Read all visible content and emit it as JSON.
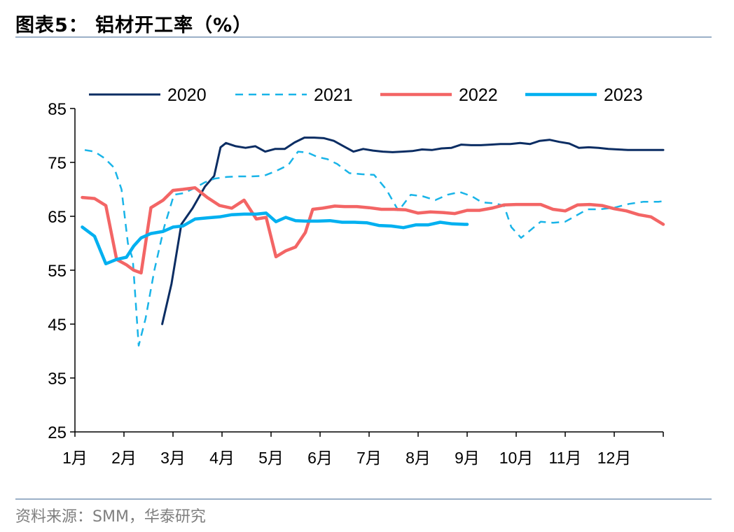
{
  "header": {
    "title": "图表5：  铝材开工率（%）"
  },
  "footer": {
    "source": "资料来源：SMM，华泰研究"
  },
  "chart_data": {
    "type": "line",
    "title": "",
    "xlabel": "",
    "ylabel": "",
    "ylim": [
      25,
      85
    ],
    "yticks": [
      25,
      35,
      45,
      55,
      65,
      75,
      85
    ],
    "xlim": [
      1,
      13
    ],
    "xticks": [
      {
        "v": 1,
        "label": "1月"
      },
      {
        "v": 2,
        "label": "2月"
      },
      {
        "v": 3,
        "label": "3月"
      },
      {
        "v": 4,
        "label": "4月"
      },
      {
        "v": 5,
        "label": "5月"
      },
      {
        "v": 6,
        "label": "6月"
      },
      {
        "v": 7,
        "label": "7月"
      },
      {
        "v": 8,
        "label": "8月"
      },
      {
        "v": 9,
        "label": "9月"
      },
      {
        "v": 10,
        "label": "10月"
      },
      {
        "v": 11,
        "label": "11月"
      },
      {
        "v": 12,
        "label": "12月"
      }
    ],
    "legend_position": "top",
    "grid": false,
    "series": [
      {
        "name": "2020",
        "color": "#0b2d63",
        "dash": "solid",
        "width": 3,
        "x": [
          2.78,
          2.97,
          3.17,
          3.4,
          3.65,
          3.84,
          3.97,
          4.08,
          4.28,
          4.48,
          4.68,
          4.88,
          5.08,
          5.28,
          5.48,
          5.68,
          5.88,
          6.08,
          6.28,
          6.48,
          6.68,
          6.88,
          7.08,
          7.28,
          7.48,
          7.68,
          7.88,
          8.08,
          8.28,
          8.48,
          8.68,
          8.88,
          9.08,
          9.28,
          9.48,
          9.68,
          9.88,
          10.08,
          10.28,
          10.48,
          10.68,
          10.88,
          11.08,
          11.28,
          11.48,
          11.68,
          11.88,
          12.08,
          12.28,
          12.48,
          12.68,
          12.88,
          13.0
        ],
        "values": [
          45,
          52.5,
          63.5,
          66.5,
          70.5,
          72.5,
          77.8,
          78.6,
          78,
          77.7,
          78,
          77,
          77.5,
          77.5,
          78.7,
          79.6,
          79.6,
          79.5,
          79,
          78,
          77,
          77.5,
          77.2,
          77,
          76.9,
          77,
          77.1,
          77.4,
          77.3,
          77.6,
          77.7,
          78.3,
          78.2,
          78.2,
          78.3,
          78.4,
          78.4,
          78.6,
          78.4,
          79,
          79.2,
          78.8,
          78.5,
          77.7,
          77.8,
          77.7,
          77.5,
          77.4,
          77.3,
          77.3,
          77.3,
          77.3,
          77.3
        ]
      },
      {
        "name": "2021",
        "color": "#19b4e8",
        "dash": "dashed",
        "width": 2.5,
        "x": [
          1.2,
          1.4,
          1.6,
          1.8,
          1.95,
          2.08,
          2.18,
          2.3,
          2.44,
          2.62,
          2.82,
          3.02,
          3.22,
          3.45,
          3.65,
          3.85,
          4.1,
          4.35,
          4.6,
          4.85,
          5.1,
          5.35,
          5.55,
          5.75,
          5.95,
          6.15,
          6.35,
          6.6,
          6.85,
          7.1,
          7.35,
          7.6,
          7.85,
          8.1,
          8.35,
          8.6,
          8.85,
          9.1,
          9.3,
          9.55,
          9.75,
          9.9,
          10.1,
          10.3,
          10.5,
          10.75,
          11.0,
          11.2,
          11.45,
          11.7,
          12.0,
          12.3,
          12.6,
          12.9,
          13.0
        ],
        "values": [
          77.3,
          77,
          75.8,
          74,
          70,
          60,
          57,
          41,
          46,
          55,
          63,
          69,
          69.3,
          70.3,
          71.3,
          72,
          72.3,
          72.4,
          72.4,
          72.5,
          73.4,
          74.5,
          77,
          76.8,
          76,
          75.6,
          74.7,
          73,
          72.8,
          72.7,
          70,
          66,
          69,
          68.7,
          68,
          69,
          69.5,
          68.7,
          67.6,
          67.4,
          67,
          63,
          61,
          62.5,
          64,
          63.8,
          64,
          65,
          66.3,
          66.3,
          66.6,
          67.3,
          67.7,
          67.7,
          67.8
        ]
      },
      {
        "name": "2022",
        "color": "#f36565",
        "dash": "solid",
        "width": 4.5,
        "x": [
          1.15,
          1.4,
          1.63,
          1.85,
          2.05,
          2.2,
          2.35,
          2.55,
          2.8,
          3.0,
          3.2,
          3.45,
          3.7,
          3.95,
          4.2,
          4.45,
          4.7,
          4.9,
          5.1,
          5.3,
          5.5,
          5.7,
          5.85,
          6.05,
          6.3,
          6.5,
          6.75,
          7.0,
          7.25,
          7.5,
          7.75,
          8.0,
          8.25,
          8.5,
          8.75,
          9.0,
          9.25,
          9.5,
          9.75,
          10.0,
          10.25,
          10.5,
          10.75,
          11.0,
          11.25,
          11.5,
          11.75,
          12.0,
          12.25,
          12.5,
          12.75,
          13.0
        ],
        "values": [
          68.5,
          68.3,
          67,
          57,
          56,
          55,
          54.5,
          66.6,
          68,
          69.8,
          70,
          70.3,
          68.5,
          67,
          66.5,
          68,
          64.5,
          64.8,
          57.5,
          58.6,
          59.3,
          62,
          66.3,
          66.5,
          66.9,
          66.8,
          66.8,
          66.6,
          66.3,
          66.3,
          66.2,
          65.6,
          65.8,
          65.7,
          65.5,
          66.1,
          66.1,
          66.5,
          67.1,
          67.2,
          67.2,
          67.2,
          66.3,
          66,
          67.1,
          67.2,
          67,
          66.4,
          66,
          65.3,
          64.9,
          63.5
        ]
      },
      {
        "name": "2023",
        "color": "#00b0f0",
        "dash": "solid",
        "width": 4.5,
        "x": [
          1.15,
          1.4,
          1.63,
          1.85,
          2.05,
          2.2,
          2.35,
          2.55,
          2.8,
          3.0,
          3.2,
          3.45,
          3.7,
          3.95,
          4.2,
          4.45,
          4.7,
          4.9,
          5.1,
          5.3,
          5.5,
          5.7,
          5.95,
          6.2,
          6.45,
          6.7,
          6.95,
          7.2,
          7.45,
          7.7,
          7.95,
          8.2,
          8.45,
          8.7,
          8.95,
          9.0
        ],
        "values": [
          63,
          61.3,
          56.2,
          57,
          57.4,
          59.5,
          61,
          61.8,
          62.2,
          63,
          63.2,
          64.5,
          64.7,
          64.9,
          65.3,
          65.4,
          65.4,
          65.6,
          64,
          64.8,
          64.2,
          64.1,
          64.1,
          64.2,
          63.9,
          63.9,
          63.8,
          63.3,
          63.2,
          62.9,
          63.4,
          63.4,
          63.9,
          63.6,
          63.5,
          63.5
        ]
      }
    ]
  }
}
